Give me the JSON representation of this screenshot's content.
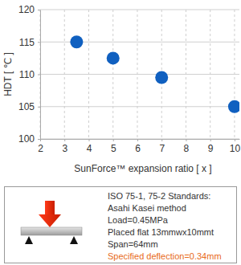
{
  "chart_data": {
    "type": "scatter",
    "x_label": "SunForce™ expansion ratio [ x ]",
    "y_label": "HDT [ ℃ ]",
    "x": [
      3.5,
      5,
      7,
      10
    ],
    "values": [
      115,
      112.5,
      109.5,
      105
    ],
    "color": "#1060c0",
    "marker": "circle",
    "xlim": [
      2,
      10.2
    ],
    "xticks": [
      2,
      3,
      4,
      5,
      6,
      7,
      8,
      9,
      10
    ],
    "ylim": [
      100,
      120
    ],
    "yticks": [
      100,
      105,
      110,
      115,
      120
    ],
    "grid": true,
    "annotations": [
      {
        "text": "ISO 75-1, 75-2 Standards:"
      },
      {
        "text": "Asahi Kasei method"
      },
      {
        "text": "Load=0.45MPa"
      },
      {
        "text": "Placed flat 13mmwx10mmt"
      },
      {
        "text": "Span=64mm"
      },
      {
        "text": "Specified deflection=0.34mm",
        "color": "#e86a1a"
      }
    ]
  }
}
